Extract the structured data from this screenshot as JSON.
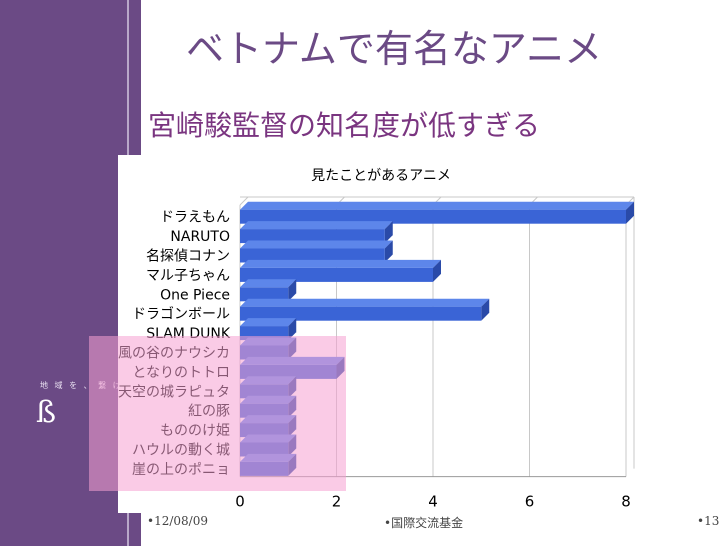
{
  "slide": {
    "title": "ベトナムで有名なアニメ",
    "subtitle": "宮崎駿監督の知名度が低すぎる",
    "motto": "地 域 を 、 繋 げ よ 。",
    "ornament": "ß",
    "footer": {
      "date": "•12/08/09",
      "org": "•国際交流基金",
      "page": "•13"
    }
  },
  "colors": {
    "sidebar": "#6b4a85",
    "bar": "#3a64d6",
    "bar_top": "#5d86ea",
    "highlight": "#f5a0d2"
  },
  "chart_data": {
    "type": "bar",
    "orientation": "horizontal",
    "title": "見たことがあるアニメ",
    "categories": [
      "ドラえもん",
      "NARUTO",
      "名探偵コナン",
      "マル子ちゃん",
      "One Piece",
      "ドラゴンボール",
      "SLAM DUNK",
      "風の谷のナウシカ",
      "となりのトトロ",
      "天空の城ラピュタ",
      "紅の豚",
      "もののけ姫",
      "ハウルの動く城",
      "崖の上のポニョ"
    ],
    "values": [
      8,
      3,
      3,
      4,
      1,
      5,
      1,
      1,
      2,
      1,
      1,
      1,
      1,
      1
    ],
    "xlim": [
      0,
      8
    ],
    "ticks": [
      0,
      2,
      4,
      6,
      8
    ],
    "tick_labels": [
      "0",
      "2",
      "4",
      "6",
      "8"
    ],
    "grid": true,
    "legend": "none"
  }
}
